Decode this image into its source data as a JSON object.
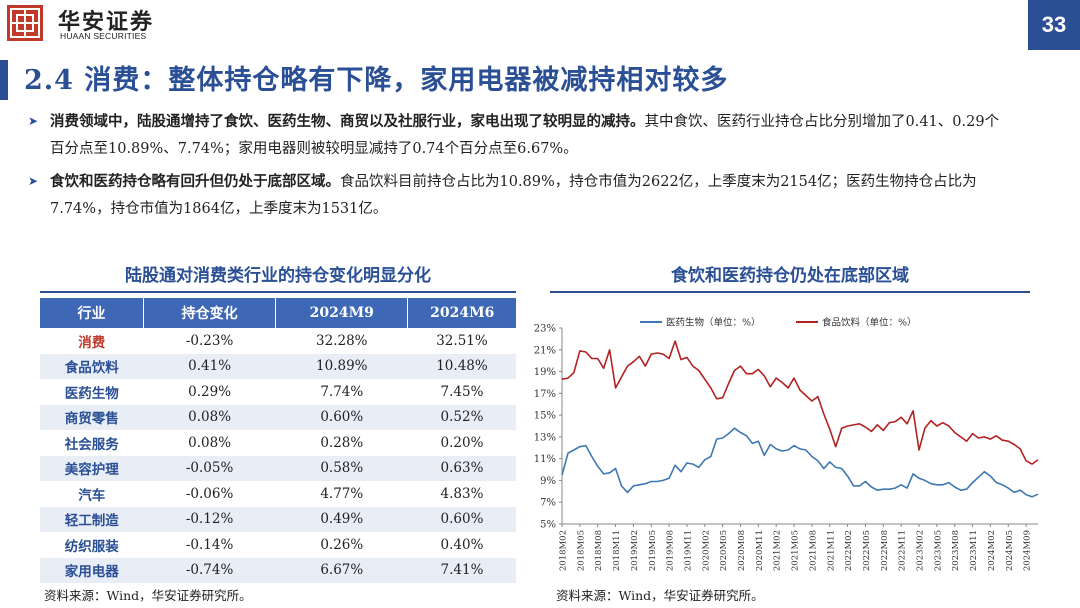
{
  "brand": {
    "name_cn": "华安证券",
    "name_en": "HUAAN SECURITIES"
  },
  "page_number": "33",
  "title": "2.4 消费：整体持仓略有下降，家用电器被减持相对较多",
  "bullets": [
    {
      "bold": "消费领域中，陆股通增持了食饮、医药生物、商贸以及社服行业，家电出现了较明显的减持。",
      "rest": "其中食饮、医药行业持仓占比分别增加了0.41、0.29个百分点至10.89%、7.74%；家用电器则被较明显减持了0.74个百分点至6.67%。"
    },
    {
      "bold": "食饮和医药持仓略有回升但仍处于底部区域。",
      "rest": "食品饮料目前持仓占比为10.89%，持仓市值为2622亿，上季度末为2154亿；医药生物持仓占比为7.74%，持仓市值为1864亿，上季度末为1531亿。"
    }
  ],
  "table": {
    "title": "陆股通对消费类行业的持仓变化明显分化",
    "headers": [
      "行业",
      "持仓变化",
      "2024M9",
      "2024M6"
    ],
    "rows": [
      [
        "消费",
        "-0.23%",
        "32.28%",
        "32.51%"
      ],
      [
        "食品饮料",
        "0.41%",
        "10.89%",
        "10.48%"
      ],
      [
        "医药生物",
        "0.29%",
        "7.74%",
        "7.45%"
      ],
      [
        "商贸零售",
        "0.08%",
        "0.60%",
        "0.52%"
      ],
      [
        "社会服务",
        "0.08%",
        "0.28%",
        "0.20%"
      ],
      [
        "美容护理",
        "-0.05%",
        "0.58%",
        "0.63%"
      ],
      [
        "汽车",
        "-0.06%",
        "4.77%",
        "4.83%"
      ],
      [
        "轻工制造",
        "-0.12%",
        "0.49%",
        "0.60%"
      ],
      [
        "纺织服装",
        "-0.14%",
        "0.26%",
        "0.40%"
      ],
      [
        "家用电器",
        "-0.74%",
        "6.67%",
        "7.41%"
      ]
    ],
    "source": "资料来源：Wind，华安证券研究所。"
  },
  "chart": {
    "title": "食饮和医药持仓仍处在底部区域",
    "source": "资料来源：Wind，华安证券研究所。"
  },
  "colors": {
    "accent": "#2a4f95",
    "header_fill": "#3e68b5",
    "pharma": "#3e78b2",
    "food": "#b22222",
    "highlight": "#c0392b"
  },
  "chart_data": {
    "type": "line",
    "title": "食饮和医药持仓仍处在底部区域",
    "x_tick_labels": [
      "2018M02",
      "2018M05",
      "2018M08",
      "2018M11",
      "2019M02",
      "2019M05",
      "2019M08",
      "2019M11",
      "2020M02",
      "2020M05",
      "2020M08",
      "2020M11",
      "2021M02",
      "2021M05",
      "2021M08",
      "2021M11",
      "2022M02",
      "2022M05",
      "2022M08",
      "2022M11",
      "2023M02",
      "2023M05",
      "2023M08",
      "2023M11",
      "2024M02",
      "2024M05",
      "2024M09"
    ],
    "y_ticks": [
      "23%",
      "21%",
      "19%",
      "17%",
      "15%",
      "13%",
      "11%",
      "9%",
      "7%",
      "5%"
    ],
    "ylim": [
      5,
      23
    ],
    "xlim": [
      0,
      80
    ],
    "series": [
      {
        "name": "医药生物（单位：%）",
        "values": [
          9.5,
          11.5,
          11.8,
          12.1,
          12.2,
          11.2,
          10.3,
          9.6,
          9.7,
          10.1,
          8.5,
          7.9,
          8.5,
          8.6,
          8.7,
          8.9,
          8.9,
          9.0,
          9.2,
          10.4,
          9.8,
          10.6,
          10.5,
          10.2,
          10.9,
          11.2,
          12.8,
          12.9,
          13.3,
          13.8,
          13.4,
          13.1,
          12.4,
          12.6,
          11.3,
          12.3,
          11.9,
          11.7,
          11.8,
          12.2,
          11.9,
          11.8,
          11.2,
          10.8,
          10.1,
          10.7,
          10.2,
          10.1,
          9.4,
          8.5,
          8.5,
          8.9,
          8.4,
          8.1,
          8.2,
          8.2,
          8.3,
          8.6,
          8.3,
          9.6,
          9.2,
          9.0,
          8.7,
          8.6,
          8.6,
          8.8,
          8.4,
          8.1,
          8.2,
          8.8,
          9.3,
          9.8,
          9.4,
          8.8,
          8.6,
          8.3,
          7.9,
          8.1,
          7.7,
          7.5,
          7.74
        ]
      },
      {
        "name": "食品饮料（单位：%）",
        "values": [
          18.3,
          18.4,
          18.9,
          20.9,
          20.8,
          20.2,
          20.2,
          19.3,
          21.0,
          17.5,
          18.5,
          19.5,
          19.9,
          20.4,
          19.5,
          20.6,
          20.7,
          20.6,
          20.2,
          21.8,
          20.1,
          20.3,
          19.5,
          19.1,
          18.3,
          17.5,
          16.5,
          16.6,
          17.9,
          19.1,
          19.5,
          18.8,
          18.8,
          19.2,
          18.6,
          17.6,
          18.4,
          18.0,
          17.5,
          18.4,
          17.3,
          16.8,
          16.3,
          16.7,
          15.1,
          13.7,
          12.1,
          13.8,
          14.0,
          14.1,
          14.2,
          13.9,
          13.5,
          14.1,
          13.6,
          14.3,
          14.4,
          14.8,
          14.2,
          15.4,
          11.8,
          13.8,
          14.5,
          14.0,
          14.3,
          14.0,
          13.4,
          13.0,
          12.6,
          13.3,
          12.9,
          13.0,
          12.8,
          13.1,
          12.7,
          12.6,
          12.3,
          11.9,
          10.8,
          10.5,
          10.89
        ]
      }
    ]
  }
}
